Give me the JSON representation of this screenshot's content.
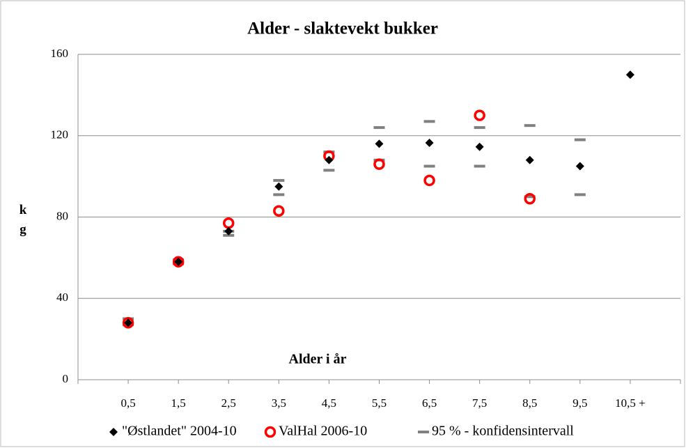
{
  "chart_data": {
    "type": "scatter",
    "title": "Alder - slaktevekt bukker",
    "x_label": "Alder i år",
    "y_label": "k g",
    "categories": [
      "0,5",
      "1,5",
      "2,5",
      "3,5",
      "4,5",
      "5,5",
      "6,5",
      "7,5",
      "8,5",
      "9,5",
      "10,5 +"
    ],
    "ylim": [
      0,
      160
    ],
    "yticks": [
      0,
      40,
      80,
      120,
      160
    ],
    "grid": true,
    "legend": "bottom",
    "series": [
      {
        "name": "\"Østlandet\" 2004-10",
        "color": "#000000",
        "marker": "diamond",
        "values": [
          28,
          58,
          73,
          95,
          108,
          116,
          116.5,
          114.5,
          108,
          105,
          150
        ]
      },
      {
        "name": "ValHal 2006-10",
        "color": "#ff0000",
        "marker": "circle",
        "values": [
          28,
          58,
          77,
          83,
          110,
          106,
          98,
          130,
          89,
          null,
          null
        ]
      },
      {
        "name": "95 % - konfidensintervall",
        "color": "#808080",
        "marker": "dash",
        "high": [
          30,
          59,
          73,
          98,
          112,
          124,
          127,
          124,
          125,
          118,
          null
        ],
        "low": [
          27,
          57,
          71,
          91,
          103,
          108,
          105,
          105,
          90,
          91,
          null
        ]
      }
    ]
  }
}
